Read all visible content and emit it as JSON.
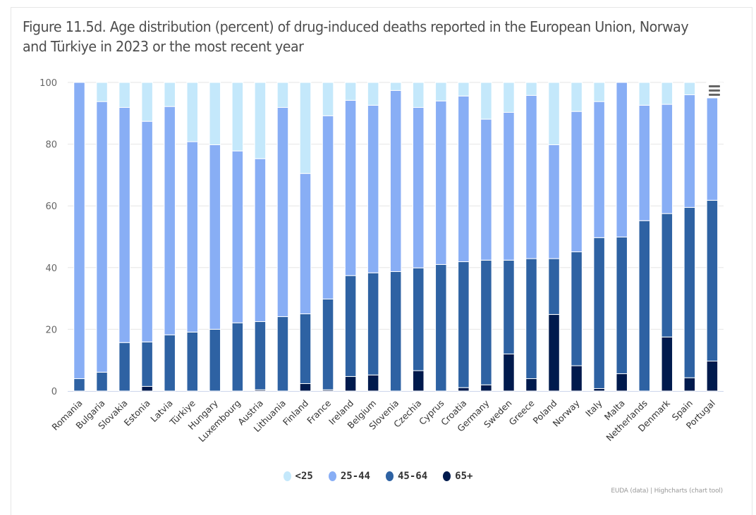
{
  "figure": {
    "title": "Figure 11.5d. Age distribution (percent) of drug-induced deaths reported in the European Union, Norway and Türkiye in 2023 or the most recent year",
    "credits": "EUDA (data) | Highcharts (chart tool)",
    "menu_icon": "hamburger-menu-icon"
  },
  "chart_data": {
    "type": "bar",
    "stacked": true,
    "orientation": "vertical",
    "title": "Figure 11.5d. Age distribution (percent) of drug-induced deaths reported in the European Union, Norway and Türkiye in 2023 or the most recent year",
    "xlabel": "",
    "ylabel": "",
    "ylim": [
      0,
      100
    ],
    "yticks": [
      0,
      20,
      40,
      60,
      80,
      100
    ],
    "grid": true,
    "legend_position": "bottom-center",
    "categories": [
      "Romania",
      "Bulgaria",
      "Slovakia",
      "Estonia",
      "Latvia",
      "Türkiye",
      "Hungary",
      "Luxembourg",
      "Austria",
      "Lithuania",
      "Finland",
      "France",
      "Ireland",
      "Belgium",
      "Slovenia",
      "Czechia",
      "Cyprus",
      "Croatia",
      "Germany",
      "Sweden",
      "Greece",
      "Poland",
      "Norway",
      "Italy",
      "Malta",
      "Netherlands",
      "Denmark",
      "Spain",
      "Portugal"
    ],
    "series": [
      {
        "name": "<25",
        "color": "#c4e8fb",
        "values": [
          0,
          6.2,
          8.1,
          12.6,
          7.8,
          19.2,
          20.2,
          22.2,
          24.7,
          8.1,
          29.5,
          10.8,
          5.8,
          7.4,
          2.6,
          8.1,
          6.0,
          4.4,
          11.9,
          9.7,
          4.2,
          20.2,
          9.4,
          6.2,
          0,
          7.4,
          7.1,
          4.0,
          5.0
        ]
      },
      {
        "name": "25-44",
        "color": "#88aef5",
        "values": [
          96.0,
          87.7,
          76.2,
          71.5,
          74.0,
          61.7,
          59.8,
          55.7,
          52.8,
          67.8,
          45.5,
          59.4,
          56.8,
          54.3,
          58.7,
          52.0,
          53.0,
          53.7,
          45.7,
          47.9,
          52.9,
          36.9,
          45.5,
          44.1,
          50.1,
          37.4,
          35.4,
          36.5,
          33.2
        ]
      },
      {
        "name": "45-64",
        "color": "#2e62a3",
        "values": [
          4.0,
          6.1,
          15.7,
          14.4,
          18.2,
          19.1,
          20.0,
          22.1,
          22.1,
          24.1,
          22.6,
          29.4,
          32.7,
          33.1,
          38.7,
          33.3,
          41.0,
          40.8,
          40.4,
          30.4,
          38.9,
          18.1,
          36.9,
          48.9,
          44.3,
          55.2,
          40.0,
          55.2,
          52.1
        ]
      },
      {
        "name": "65+",
        "color": "#001a4d",
        "values": [
          0,
          0,
          0,
          1.5,
          0,
          0,
          0,
          0,
          0.4,
          0,
          2.4,
          0.4,
          4.7,
          5.2,
          0,
          6.6,
          0,
          1.1,
          2.0,
          12.0,
          4.0,
          24.8,
          8.2,
          0.8,
          5.6,
          0,
          17.5,
          4.3,
          9.7
        ]
      }
    ]
  },
  "legend": {
    "items": [
      {
        "label": "<25",
        "color": "#c4e8fb"
      },
      {
        "label": "25-44",
        "color": "#88aef5"
      },
      {
        "label": "45-64",
        "color": "#2e62a3"
      },
      {
        "label": "65+",
        "color": "#001a4d"
      }
    ]
  }
}
